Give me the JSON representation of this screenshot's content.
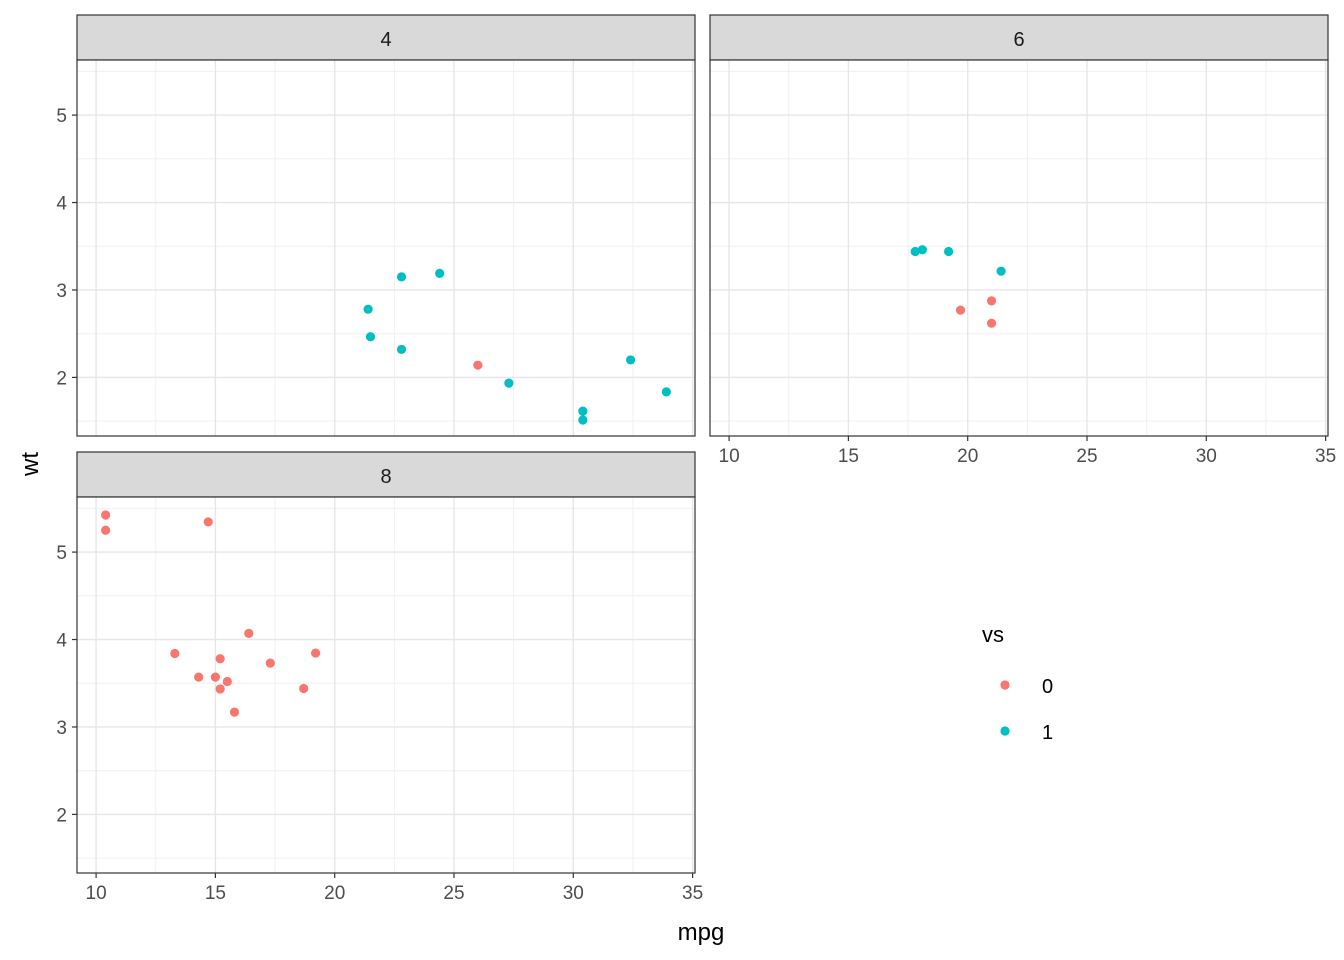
{
  "chart_data": {
    "type": "scatter",
    "xlabel": "mpg",
    "ylabel": "wt",
    "xlim": [
      9.2,
      35.1
    ],
    "ylim": [
      1.33,
      5.63
    ],
    "x_ticks": [
      10,
      15,
      20,
      25,
      30,
      35
    ],
    "y_ticks": [
      2,
      3,
      4,
      5
    ],
    "grid": true,
    "legend": {
      "title": "vs",
      "position": "right",
      "entries": [
        {
          "label": "0",
          "color": "#F8766D"
        },
        {
          "label": "1",
          "color": "#00BFC4"
        }
      ]
    },
    "facets": [
      {
        "label": "4",
        "points": [
          {
            "x": 22.8,
            "y": 2.32,
            "vs": "1"
          },
          {
            "x": 24.4,
            "y": 3.19,
            "vs": "1"
          },
          {
            "x": 22.8,
            "y": 3.15,
            "vs": "1"
          },
          {
            "x": 32.4,
            "y": 2.2,
            "vs": "1"
          },
          {
            "x": 30.4,
            "y": 1.615,
            "vs": "1"
          },
          {
            "x": 33.9,
            "y": 1.835,
            "vs": "1"
          },
          {
            "x": 21.5,
            "y": 2.465,
            "vs": "1"
          },
          {
            "x": 27.3,
            "y": 1.935,
            "vs": "1"
          },
          {
            "x": 26.0,
            "y": 2.14,
            "vs": "0"
          },
          {
            "x": 30.4,
            "y": 1.513,
            "vs": "1"
          },
          {
            "x": 21.4,
            "y": 2.78,
            "vs": "1"
          }
        ]
      },
      {
        "label": "6",
        "points": [
          {
            "x": 21.0,
            "y": 2.62,
            "vs": "0"
          },
          {
            "x": 21.0,
            "y": 2.875,
            "vs": "0"
          },
          {
            "x": 21.4,
            "y": 3.215,
            "vs": "1"
          },
          {
            "x": 18.1,
            "y": 3.46,
            "vs": "1"
          },
          {
            "x": 19.2,
            "y": 3.44,
            "vs": "1"
          },
          {
            "x": 17.8,
            "y": 3.44,
            "vs": "1"
          },
          {
            "x": 19.7,
            "y": 2.77,
            "vs": "0"
          }
        ]
      },
      {
        "label": "8",
        "points": [
          {
            "x": 18.7,
            "y": 3.44,
            "vs": "0"
          },
          {
            "x": 14.3,
            "y": 3.57,
            "vs": "0"
          },
          {
            "x": 16.4,
            "y": 4.07,
            "vs": "0"
          },
          {
            "x": 17.3,
            "y": 3.73,
            "vs": "0"
          },
          {
            "x": 15.2,
            "y": 3.78,
            "vs": "0"
          },
          {
            "x": 10.4,
            "y": 5.25,
            "vs": "0"
          },
          {
            "x": 10.4,
            "y": 5.424,
            "vs": "0"
          },
          {
            "x": 14.7,
            "y": 5.345,
            "vs": "0"
          },
          {
            "x": 15.5,
            "y": 3.52,
            "vs": "0"
          },
          {
            "x": 15.2,
            "y": 3.435,
            "vs": "0"
          },
          {
            "x": 13.3,
            "y": 3.84,
            "vs": "0"
          },
          {
            "x": 19.2,
            "y": 3.845,
            "vs": "0"
          },
          {
            "x": 15.8,
            "y": 3.17,
            "vs": "0"
          },
          {
            "x": 15.0,
            "y": 3.57,
            "vs": "0"
          }
        ]
      }
    ]
  }
}
